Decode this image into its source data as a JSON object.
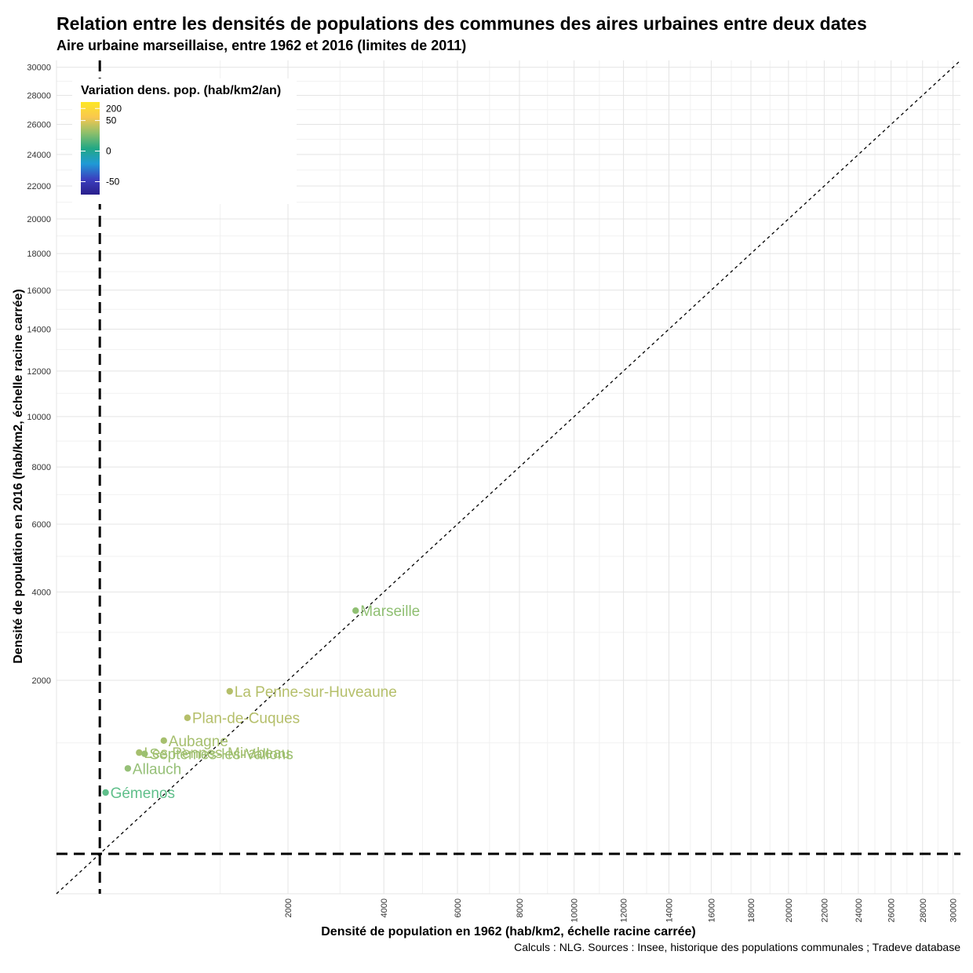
{
  "header": {
    "title": "Relation entre les densités de populations des communes des aires urbaines entre deux dates",
    "subtitle": "Aire urbaine marseillaise, entre 1962 et 2016 (limites de 2011)"
  },
  "caption": "Calculs : NLG. Sources : Insee, historique des populations communales ; Tradeve database",
  "chart_data": {
    "type": "scatter",
    "x_scale": "sqrt",
    "y_scale": "sqrt",
    "xlabel": "Densité de population en 1962 (hab/km2, échelle racine carrée)",
    "ylabel": "Densité de population en 2016 (hab/km2, échelle racine carrée)",
    "x_ticks": [
      2000,
      4000,
      6000,
      8000,
      10000,
      12000,
      14000,
      16000,
      18000,
      20000,
      22000,
      24000,
      26000,
      28000,
      30000
    ],
    "y_ticks": [
      2000,
      4000,
      6000,
      8000,
      10000,
      12000,
      14000,
      16000,
      18000,
      20000,
      22000,
      24000,
      26000,
      28000,
      30000
    ],
    "xlim": [
      0,
      30500
    ],
    "ylim": [
      0,
      30500
    ],
    "grid": true,
    "reference_line": "y = x",
    "threshold_lines": {
      "x": 70,
      "y": 70
    },
    "legend": {
      "title": "Variation dens. pop. (hab/km2/an)",
      "placement": "top-left",
      "ticks": [
        "200",
        "50",
        "0",
        "-50"
      ],
      "colors": [
        "#fde725",
        "#f9c74f",
        "#8fbf6a",
        "#22a884",
        "#1f9ad6",
        "#3b3fbf",
        "#2a1f8c"
      ]
    },
    "points": [
      {
        "name": "Marseille",
        "x": 3340,
        "y": 3520,
        "variation": 3,
        "color": "#8fbf72"
      },
      {
        "name": "La Penne-sur-Huveaune",
        "x": 1120,
        "y": 1800,
        "variation": 13,
        "color": "#b5bf6a"
      },
      {
        "name": "Plan-de-Cuques",
        "x": 640,
        "y": 1360,
        "variation": 13,
        "color": "#b5bf6a"
      },
      {
        "name": "Aubagne",
        "x": 430,
        "y": 1030,
        "variation": 11,
        "color": "#a6bf6e"
      },
      {
        "name": "Les Pennes-Mirabeau",
        "x": 255,
        "y": 875,
        "variation": 11,
        "color": "#a6bf6e"
      },
      {
        "name": "Septèmes-les-Vallons",
        "x": 290,
        "y": 860,
        "variation": 10,
        "color": "#9cc070"
      },
      {
        "name": "Allauch",
        "x": 190,
        "y": 690,
        "variation": 9,
        "color": "#96c078"
      },
      {
        "name": "Gémenos",
        "x": 90,
        "y": 450,
        "variation": 6,
        "color": "#5fbf8a"
      }
    ]
  }
}
